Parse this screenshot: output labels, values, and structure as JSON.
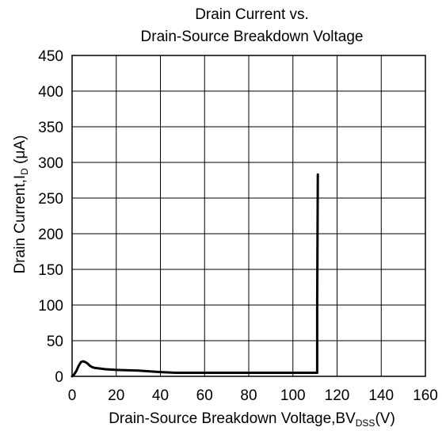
{
  "chart_data": {
    "type": "line",
    "title": [
      "Drain Current vs.",
      "Drain-Source Breakdown Voltage"
    ],
    "xlabel": {
      "main": "Drain-Source Breakdown Voltage,BV",
      "sub": "DSS",
      "suffix": "(V)"
    },
    "ylabel": {
      "main": "Drain Current,I",
      "sub": "D",
      "suffix": " (μA)"
    },
    "xlim": [
      0,
      160
    ],
    "ylim": [
      0,
      450
    ],
    "xticks": [
      0,
      20,
      40,
      60,
      80,
      100,
      120,
      140,
      160
    ],
    "yticks": [
      0,
      50,
      100,
      150,
      200,
      250,
      300,
      350,
      400,
      450
    ],
    "grid": true,
    "legend": "none",
    "series": [
      {
        "color": "#000000",
        "x": [
          0,
          1,
          2,
          3,
          4,
          5,
          6,
          7,
          8,
          9,
          10,
          15,
          20,
          30,
          40,
          47,
          60,
          80,
          100,
          111,
          111,
          111.3
        ],
        "y": [
          0,
          3,
          8,
          15,
          20,
          21,
          20,
          18,
          15,
          13,
          12,
          10,
          9,
          8,
          6,
          5,
          5,
          5,
          5,
          5,
          100,
          283
        ]
      }
    ]
  }
}
